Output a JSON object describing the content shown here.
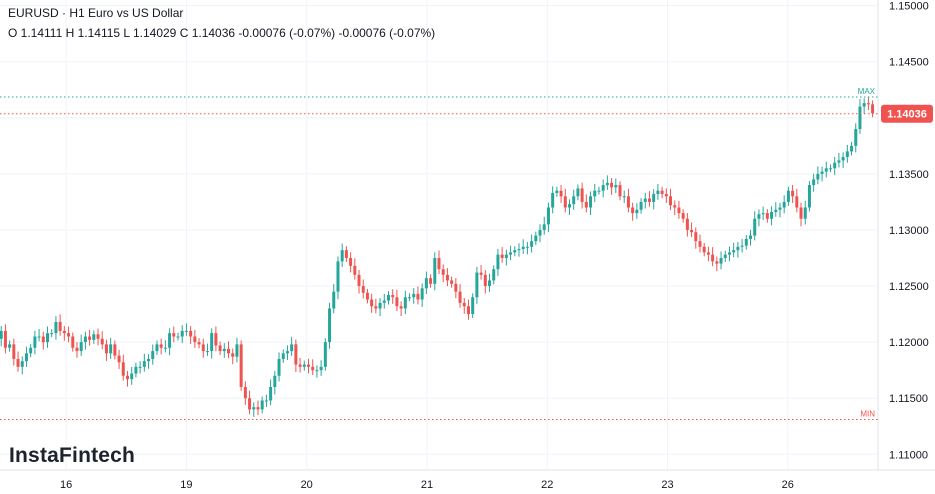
{
  "header": {
    "title": "EURUSD · H1 Euro vs US Dollar",
    "ohlc": "O 1.14111 H 1.14115 L 1.14029 C 1.14036 -0.00076 (-0.07%) -0.00076 (-0.07%)"
  },
  "branding": {
    "logo_text": "InstaFintech"
  },
  "colors": {
    "up": "#26a69a",
    "down": "#ef5350",
    "grid": "#f0f3fa",
    "max_line": "#26a69a",
    "min_line": "#ef5350",
    "price_tag": "#ef5350"
  },
  "chart_data": {
    "type": "candlestick",
    "symbol": "EURUSD",
    "interval": "H1",
    "y_axis": {
      "ticks": [
        "1.15000",
        "1.14500",
        "1.14000",
        "1.13500",
        "1.13000",
        "1.12500",
        "1.12000",
        "1.11500",
        "1.11000"
      ],
      "range": [
        1.1086,
        1.1505
      ]
    },
    "x_axis": {
      "labels": [
        "16",
        "19",
        "20",
        "21",
        "22",
        "23",
        "26"
      ],
      "label_positions": [
        10,
        20,
        30,
        40,
        50,
        60,
        70
      ],
      "range": [
        4.5,
        77.5
      ]
    },
    "grid": true,
    "current_price": {
      "value": 1.14036,
      "label": "1.14036"
    },
    "max_line": {
      "value": 1.14185,
      "label": "MAX"
    },
    "min_line": {
      "value": 1.1131,
      "label": "MIN"
    },
    "candles_close": [
      1.1225,
      1.1205,
      1.1203,
      1.121,
      1.1195,
      1.1198,
      1.1185,
      1.1178,
      1.1183,
      1.119,
      1.1195,
      1.1205,
      1.1205,
      1.12,
      1.1208,
      1.1208,
      1.1218,
      1.121,
      1.1208,
      1.1205,
      1.1195,
      1.1192,
      1.12,
      1.1205,
      1.1202,
      1.1207,
      1.1203,
      1.1198,
      1.119,
      1.1198,
      1.1188,
      1.1182,
      1.117,
      1.1167,
      1.1172,
      1.1178,
      1.1178,
      1.1183,
      1.1185,
      1.1192,
      1.1198,
      1.1195,
      1.1195,
      1.1208,
      1.1205,
      1.1205,
      1.121,
      1.121,
      1.1205,
      1.12,
      1.1198,
      1.1192,
      1.1192,
      1.1208,
      1.1197,
      1.1192,
      1.1194,
      1.119,
      1.1187,
      1.1198,
      1.116,
      1.115,
      1.114,
      1.1142,
      1.114,
      1.1148,
      1.1148,
      1.116,
      1.117,
      1.1185,
      1.119,
      1.1192,
      1.1198,
      1.118,
      1.1178,
      1.118,
      1.1178,
      1.1175,
      1.1175,
      1.1178,
      1.12,
      1.123,
      1.1245,
      1.1272,
      1.1282,
      1.1275,
      1.1268,
      1.126,
      1.125,
      1.1244,
      1.1238,
      1.1232,
      1.123,
      1.1235,
      1.1237,
      1.1242,
      1.124,
      1.1232,
      1.123,
      1.124,
      1.124,
      1.1243,
      1.1238,
      1.1248,
      1.1257,
      1.1252,
      1.1275,
      1.1265,
      1.126,
      1.1255,
      1.1252,
      1.1245,
      1.1235,
      1.1232,
      1.1225,
      1.124,
      1.1262,
      1.126,
      1.125,
      1.1255,
      1.1265,
      1.1278,
      1.1275,
      1.1278,
      1.128,
      1.1282,
      1.1283,
      1.1285,
      1.1285,
      1.129,
      1.1295,
      1.13,
      1.1305,
      1.132,
      1.1333,
      1.1335,
      1.133,
      1.132,
      1.1323,
      1.133,
      1.1337,
      1.1325,
      1.132,
      1.133,
      1.1335,
      1.1335,
      1.134,
      1.1342,
      1.1338,
      1.134,
      1.133,
      1.133,
      1.132,
      1.1315,
      1.1318,
      1.1325,
      1.1328,
      1.1325,
      1.1332,
      1.1335,
      1.1332,
      1.133,
      1.1322,
      1.132,
      1.1315,
      1.131,
      1.13,
      1.1298,
      1.129,
      1.1285,
      1.128,
      1.1278,
      1.1272,
      1.127,
      1.1275,
      1.1278,
      1.128,
      1.1282,
      1.1285,
      1.1286,
      1.1292,
      1.1295,
      1.131,
      1.1314,
      1.1315,
      1.131,
      1.1316,
      1.1318,
      1.132,
      1.1325,
      1.1335,
      1.133,
      1.132,
      1.131,
      1.132,
      1.134,
      1.1345,
      1.135,
      1.1352,
      1.1355,
      1.1355,
      1.136,
      1.1362,
      1.1365,
      1.137,
      1.1375,
      1.139,
      1.141,
      1.1413,
      1.1412,
      1.1404
    ]
  }
}
